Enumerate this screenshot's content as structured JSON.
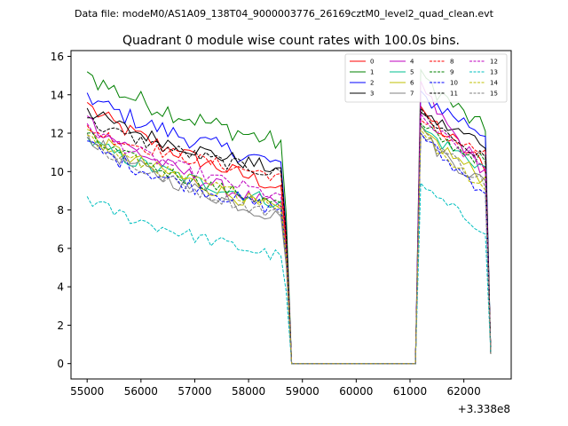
{
  "chart_data": {
    "type": "line",
    "suptitle": "Data file: modeM0/AS1A09_138T04_9000003776_26169cztM0_level2_quad_clean.evt",
    "title": "Quadrant 0 module wise count rates with 100.0s bins.",
    "xlabel": "",
    "ylabel": "",
    "offset_label": "+3.338e8",
    "xlim": [
      54700,
      62880
    ],
    "ylim": [
      -0.8,
      16.3
    ],
    "xticks": [
      55000,
      56000,
      57000,
      58000,
      59000,
      60000,
      61000,
      62000
    ],
    "yticks": [
      0,
      2,
      4,
      6,
      8,
      10,
      12,
      14,
      16
    ],
    "x_start": 55000,
    "x_step": 100,
    "gap_start": 58800,
    "gap_end": 61100,
    "x_end": 62500,
    "legend_position": "upper-right",
    "series": [
      {
        "name": "0",
        "color": "#ff0000",
        "dash": "solid",
        "start": 13.6,
        "seg1_end": 9.1,
        "peak": 13.4,
        "seg2_end": 10.3,
        "noise": 0.45
      },
      {
        "name": "1",
        "color": "#008000",
        "dash": "solid",
        "start": 15.2,
        "seg1_end": 11.4,
        "peak": 15.3,
        "seg2_end": 12.1,
        "noise": 0.55
      },
      {
        "name": "2",
        "color": "#0000ff",
        "dash": "solid",
        "start": 14.1,
        "seg1_end": 10.3,
        "peak": 14.2,
        "seg2_end": 12.0,
        "noise": 0.5
      },
      {
        "name": "3",
        "color": "#000000",
        "dash": "solid",
        "start": 13.3,
        "seg1_end": 10.0,
        "peak": 13.1,
        "seg2_end": 11.5,
        "noise": 0.4
      },
      {
        "name": "4",
        "color": "#bf00bf",
        "dash": "solid",
        "start": 12.9,
        "seg1_end": 8.0,
        "peak": 14.7,
        "seg2_end": 10.0,
        "noise": 0.4
      },
      {
        "name": "5",
        "color": "#00bf8f",
        "dash": "solid",
        "start": 11.8,
        "seg1_end": 8.3,
        "peak": 12.4,
        "seg2_end": 10.2,
        "noise": 0.4
      },
      {
        "name": "6",
        "color": "#bfbf00",
        "dash": "solid",
        "start": 12.2,
        "seg1_end": 7.9,
        "peak": 12.4,
        "seg2_end": 9.6,
        "noise": 0.4
      },
      {
        "name": "7",
        "color": "#808080",
        "dash": "solid",
        "start": 12.0,
        "seg1_end": 7.5,
        "peak": 12.0,
        "seg2_end": 9.4,
        "noise": 0.4
      },
      {
        "name": "8",
        "color": "#ff0000",
        "dash": "dashed",
        "start": 12.4,
        "seg1_end": 9.7,
        "peak": 12.7,
        "seg2_end": 10.9,
        "noise": 0.35
      },
      {
        "name": "9",
        "color": "#008000",
        "dash": "dashed",
        "start": 12.0,
        "seg1_end": 8.2,
        "peak": 12.5,
        "seg2_end": 10.5,
        "noise": 0.35
      },
      {
        "name": "10",
        "color": "#0000ff",
        "dash": "dashed",
        "start": 11.6,
        "seg1_end": 7.9,
        "peak": 12.0,
        "seg2_end": 9.0,
        "noise": 0.4
      },
      {
        "name": "11",
        "color": "#000000",
        "dash": "dashed",
        "start": 12.8,
        "seg1_end": 9.8,
        "peak": 13.3,
        "seg2_end": 10.6,
        "noise": 0.35
      },
      {
        "name": "12",
        "color": "#bf00bf",
        "dash": "dashed",
        "start": 12.5,
        "seg1_end": 8.6,
        "peak": 13.0,
        "seg2_end": 10.2,
        "noise": 0.35
      },
      {
        "name": "13",
        "color": "#00bfbf",
        "dash": "dashed",
        "start": 8.7,
        "seg1_end": 5.5,
        "peak": 9.4,
        "seg2_end": 7.0,
        "noise": 0.35
      },
      {
        "name": "14",
        "color": "#bfbf00",
        "dash": "dashed",
        "start": 11.9,
        "seg1_end": 8.2,
        "peak": 12.2,
        "seg2_end": 9.2,
        "noise": 0.35
      },
      {
        "name": "15",
        "color": "#808080",
        "dash": "dashed",
        "start": 11.8,
        "seg1_end": 7.6,
        "peak": 12.4,
        "seg2_end": 9.4,
        "noise": 0.35
      }
    ]
  }
}
